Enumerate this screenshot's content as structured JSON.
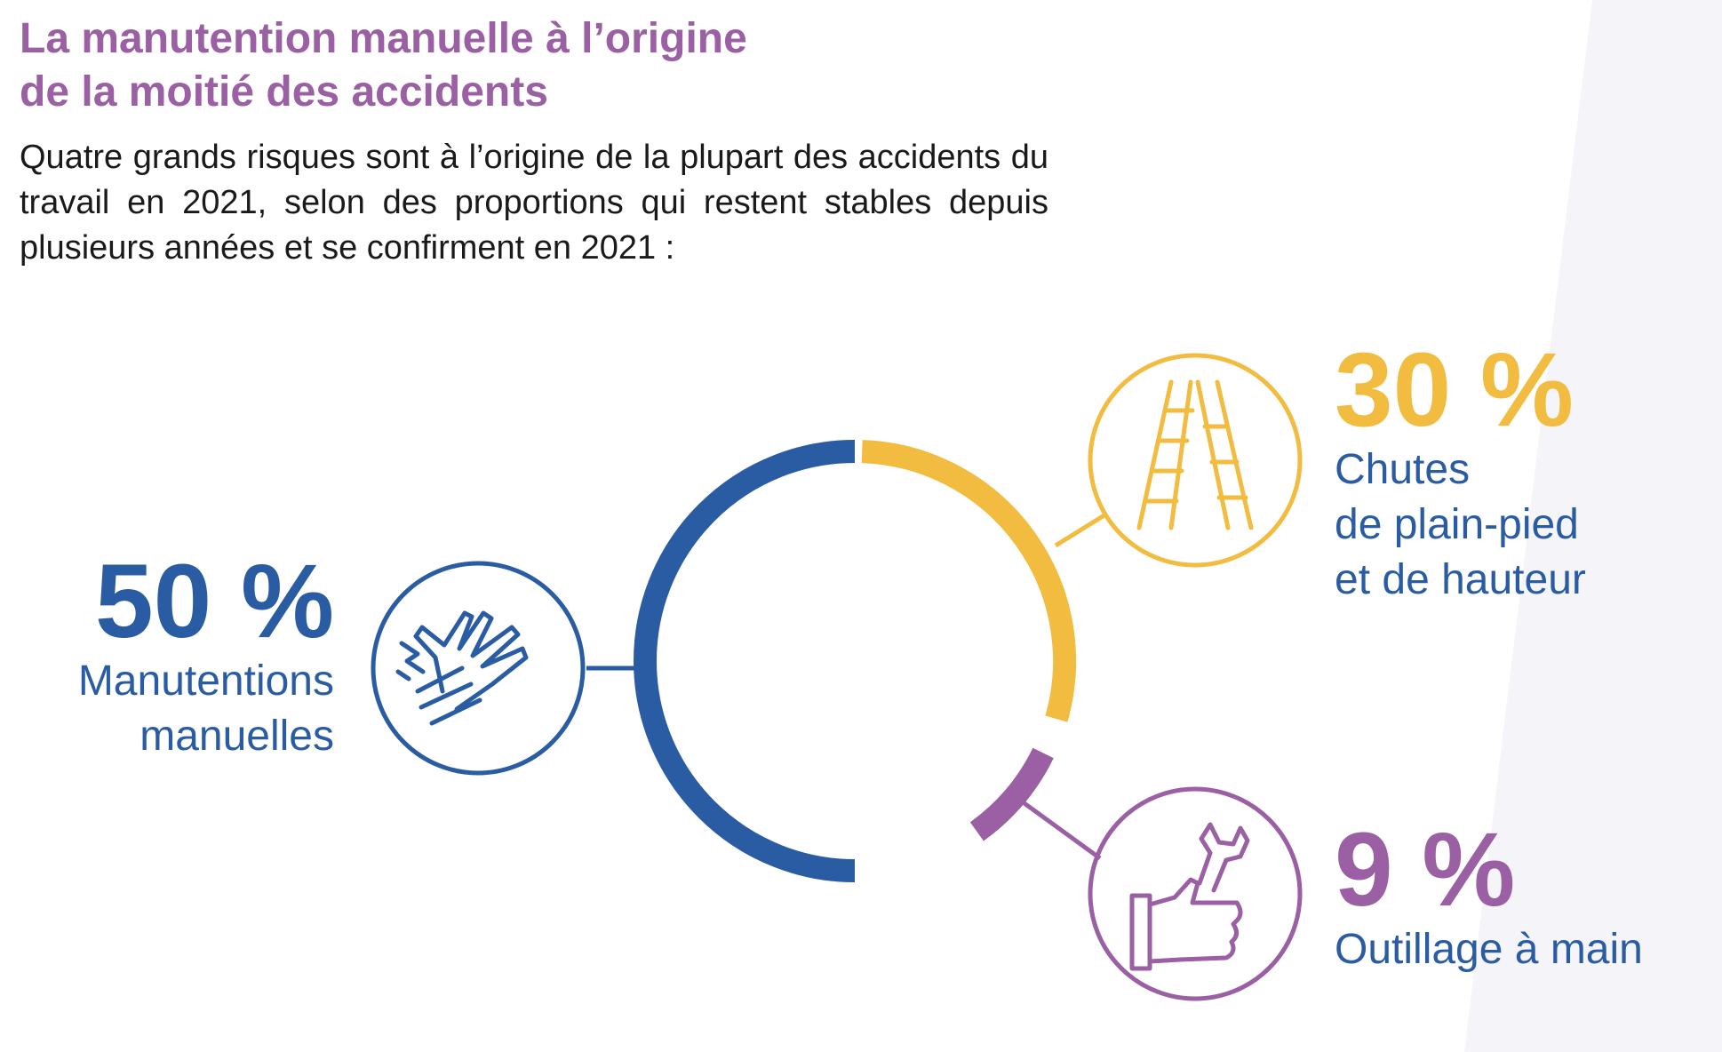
{
  "header": {
    "title_line1": "La manutention manuelle à l’origine",
    "title_line2": "de la moitié des accidents",
    "intro": "Quatre grands risques sont à l’origine de la plupart des accidents du travail en 2021, selon des proportions qui restent stables depuis plusieurs années et se confirment en 2021 :"
  },
  "colors": {
    "blue": "#2A5CA4",
    "yellow": "#F2BC41",
    "purple": "#9B5FA4"
  },
  "chart_data": {
    "type": "pie",
    "title": "",
    "unit": "%",
    "slices": [
      {
        "label": "Manutentions manuelles",
        "value": 50,
        "display": "50 %",
        "color": "#2A5CA4",
        "icon": "hand-injury-icon",
        "label_lines": [
          "Manutentions",
          "manuelles"
        ]
      },
      {
        "label": "Chutes de plain-pied et de hauteur",
        "value": 30,
        "display": "30 %",
        "color": "#F2BC41",
        "icon": "ladder-icon",
        "label_lines": [
          "Chutes",
          "de plain-pied",
          "et de hauteur"
        ]
      },
      {
        "label": "Outillage à main",
        "value": 9,
        "display": "9 %",
        "color": "#9B5FA4",
        "icon": "hand-wrench-icon",
        "label_lines": [
          "Outillage à main"
        ]
      }
    ]
  }
}
